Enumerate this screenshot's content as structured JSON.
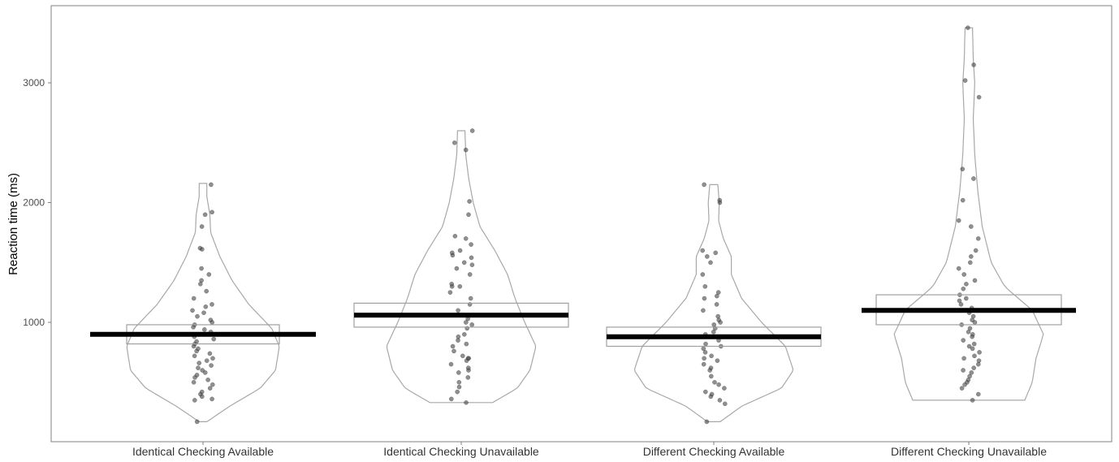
{
  "chart_data": {
    "type": "violin",
    "title": "",
    "xlabel": "",
    "ylabel": "Reaction time (ms)",
    "ylim": [
      0,
      3600
    ],
    "yticks": [
      1000,
      2000,
      3000
    ],
    "grid": false,
    "categories": [
      "Identical Checking Available",
      "Identical Checking Unavailable",
      "Different Checking Available",
      "Different Checking Unavailable"
    ],
    "groups": [
      {
        "category": "Identical Checking Available",
        "mean": 900,
        "ci": [
          820,
          980
        ],
        "range": [
          170,
          2160
        ],
        "density": [
          [
            170,
            0.05
          ],
          [
            300,
            0.35
          ],
          [
            450,
            0.75
          ],
          [
            600,
            0.95
          ],
          [
            800,
            1.0
          ],
          [
            950,
            0.9
          ],
          [
            1150,
            0.6
          ],
          [
            1350,
            0.38
          ],
          [
            1550,
            0.22
          ],
          [
            1750,
            0.1
          ],
          [
            1900,
            0.09
          ],
          [
            2050,
            0.05
          ],
          [
            2160,
            0.05
          ]
        ],
        "points": [
          170,
          350,
          360,
          380,
          400,
          420,
          450,
          480,
          500,
          520,
          540,
          560,
          580,
          600,
          620,
          640,
          660,
          680,
          700,
          720,
          740,
          760,
          780,
          800,
          820,
          840,
          860,
          880,
          900,
          920,
          940,
          960,
          980,
          1000,
          1020,
          1050,
          1080,
          1100,
          1130,
          1150,
          1200,
          1260,
          1320,
          1350,
          1400,
          1450,
          1610,
          1620,
          1800,
          1900,
          1920,
          2150
        ]
      },
      {
        "category": "Identical Checking Unavailable",
        "mean": 1060,
        "ci": [
          960,
          1160
        ],
        "range": [
          330,
          2600
        ],
        "density": [
          [
            330,
            0.42
          ],
          [
            450,
            0.75
          ],
          [
            600,
            0.92
          ],
          [
            800,
            1.0
          ],
          [
            1000,
            0.85
          ],
          [
            1200,
            0.72
          ],
          [
            1400,
            0.62
          ],
          [
            1600,
            0.45
          ],
          [
            1800,
            0.25
          ],
          [
            2000,
            0.16
          ],
          [
            2200,
            0.1
          ],
          [
            2400,
            0.06
          ],
          [
            2600,
            0.05
          ]
        ],
        "points": [
          330,
          360,
          420,
          460,
          500,
          540,
          580,
          600,
          620,
          650,
          680,
          700,
          700,
          720,
          760,
          800,
          820,
          850,
          880,
          900,
          950,
          980,
          1000,
          1030,
          1060,
          1100,
          1150,
          1200,
          1250,
          1300,
          1300,
          1320,
          1400,
          1450,
          1480,
          1500,
          1540,
          1560,
          1580,
          1600,
          1650,
          1700,
          1720,
          1900,
          2010,
          2440,
          2500,
          2600
        ]
      },
      {
        "category": "Different Checking Available",
        "mean": 880,
        "ci": [
          800,
          960
        ],
        "range": [
          170,
          2150
        ],
        "density": [
          [
            170,
            0.08
          ],
          [
            300,
            0.35
          ],
          [
            450,
            0.85
          ],
          [
            600,
            1.0
          ],
          [
            800,
            0.9
          ],
          [
            1000,
            0.6
          ],
          [
            1200,
            0.35
          ],
          [
            1400,
            0.22
          ],
          [
            1550,
            0.22
          ],
          [
            1700,
            0.12
          ],
          [
            1850,
            0.06
          ],
          [
            2000,
            0.07
          ],
          [
            2150,
            0.05
          ]
        ],
        "points": [
          170,
          320,
          350,
          380,
          400,
          420,
          450,
          480,
          500,
          550,
          600,
          620,
          650,
          680,
          700,
          720,
          750,
          780,
          800,
          820,
          850,
          880,
          900,
          920,
          950,
          980,
          1000,
          1020,
          1050,
          1100,
          1150,
          1200,
          1220,
          1250,
          1300,
          1400,
          1500,
          1550,
          1580,
          1600,
          2000,
          2020,
          2150
        ]
      },
      {
        "category": "Different Checking Unavailable",
        "mean": 1100,
        "ci": [
          980,
          1230
        ],
        "range": [
          350,
          3460
        ],
        "density": [
          [
            350,
            0.75
          ],
          [
            500,
            0.85
          ],
          [
            700,
            0.9
          ],
          [
            900,
            1.0
          ],
          [
            1100,
            0.85
          ],
          [
            1300,
            0.48
          ],
          [
            1500,
            0.3
          ],
          [
            1800,
            0.18
          ],
          [
            2100,
            0.12
          ],
          [
            2400,
            0.08
          ],
          [
            2700,
            0.06
          ],
          [
            3000,
            0.08
          ],
          [
            3200,
            0.06
          ],
          [
            3460,
            0.05
          ]
        ],
        "points": [
          350,
          400,
          450,
          480,
          500,
          520,
          550,
          580,
          600,
          620,
          650,
          680,
          700,
          720,
          750,
          780,
          800,
          820,
          850,
          880,
          900,
          920,
          950,
          980,
          1000,
          1020,
          1050,
          1080,
          1100,
          1120,
          1150,
          1180,
          1200,
          1230,
          1280,
          1320,
          1350,
          1400,
          1450,
          1500,
          1550,
          1600,
          1700,
          1800,
          1850,
          2020,
          2200,
          2280,
          2880,
          3020,
          3150,
          3460
        ]
      }
    ]
  },
  "colors": {
    "violin_stroke": "#a8a8a8",
    "box_stroke": "#a0a0a0",
    "mean_line": "#000000",
    "points": "#444444",
    "panel_border": "#808080"
  }
}
